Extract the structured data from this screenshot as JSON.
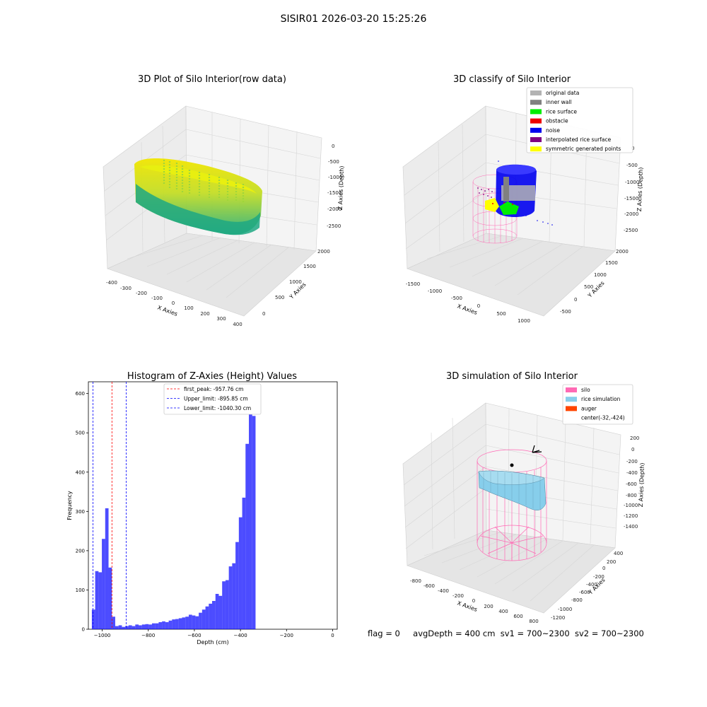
{
  "suptitle": "SISIR01 2026-03-20 15:25:26",
  "panels": {
    "raw": {
      "title": "3D Plot of Silo Interior(row data)",
      "xlabel": "X Axies",
      "ylabel": "Y Axies",
      "zlabel": "Z Axies (Depth)",
      "xticks": [
        "-400",
        "-300",
        "-200",
        "-100",
        "0",
        "100",
        "200",
        "300",
        "400"
      ],
      "yticks": [
        "0",
        "500",
        "1000",
        "1500",
        "2000"
      ],
      "zticks": [
        "0",
        "-500",
        "-1000",
        "-1500",
        "-2000",
        "-2500"
      ]
    },
    "classify": {
      "title": "3D classify of Silo Interior",
      "xlabel": "X Axies",
      "ylabel": "Y Axies",
      "zlabel": "Z Axies (Depth)",
      "xticks": [
        "-1500",
        "-1000",
        "-500",
        "0",
        "500",
        "1000"
      ],
      "yticks": [
        "-500",
        "0",
        "500",
        "1000",
        "1500",
        "2000"
      ],
      "zticks": [
        "0",
        "-500",
        "-1000",
        "-1500",
        "-2000",
        "-2500"
      ],
      "legend": [
        {
          "label": "original data",
          "color": "#b3b3b3"
        },
        {
          "label": "inner wall",
          "color": "#808080"
        },
        {
          "label": "rice surface",
          "color": "#00ee00"
        },
        {
          "label": "obstacle",
          "color": "#ee0000"
        },
        {
          "label": "noise",
          "color": "#0000ee"
        },
        {
          "label": "interpolated rice surface",
          "color": "#800080"
        },
        {
          "label": "symmetric generated points",
          "color": "#ffff00"
        }
      ]
    },
    "simulation": {
      "title": "3D simulation of Silo Interior",
      "xlabel": "X Axies",
      "ylabel": "Y Axies",
      "zlabel": "Z Axies (Depth)",
      "xticks": [
        "-800",
        "-600",
        "-400",
        "-200",
        "0",
        "200",
        "400",
        "600",
        "800"
      ],
      "yticks": [
        "400",
        "200",
        "0",
        "-200",
        "-400",
        "-600",
        "-800",
        "-1000",
        "-1200"
      ],
      "zticks": [
        "200",
        "0",
        "-200",
        "-400",
        "-600",
        "-800",
        "-1000",
        "-1200",
        "-1400"
      ],
      "legend": [
        {
          "label": "silo",
          "color": "#ff69b4"
        },
        {
          "label": "rice simulation",
          "color": "#87ceeb"
        },
        {
          "label": "auger",
          "color": "#ff4500"
        },
        {
          "label": "center(-32,-424)",
          "color": ""
        }
      ]
    }
  },
  "footer": {
    "flag": "flag = 0",
    "avg": "avgDepth = 400 cm",
    "sv1": "sv1 = 700~2300",
    "sv2": "sv2 = 700~2300"
  },
  "chart_data": {
    "type": "bar",
    "title": "Histogram of Z-Axies (Height) Values",
    "xlabel": "Depth (cm)",
    "ylabel": "Frequency",
    "xlim": [
      -1060,
      20
    ],
    "ylim": [
      0,
      630
    ],
    "bar_color": "#0000ff",
    "bin_start": -1045,
    "bin_width": 14.5,
    "values": [
      50,
      148,
      145,
      230,
      308,
      157,
      32,
      8,
      10,
      6,
      8,
      10,
      8,
      12,
      10,
      12,
      13,
      12,
      15,
      15,
      18,
      20,
      18,
      22,
      25,
      26,
      28,
      30,
      32,
      37,
      35,
      33,
      42,
      50,
      58,
      65,
      72,
      90,
      85,
      122,
      125,
      160,
      168,
      222,
      285,
      335,
      472,
      598,
      543
    ],
    "vlines": [
      {
        "label": "first_peak: -957.76 cm",
        "x": -957.76,
        "color": "#ff0000"
      },
      {
        "label": "Upper_limit: -895.85 cm",
        "x": -895.85,
        "color": "#0000ff"
      },
      {
        "label": "Lower_limit: -1040.30 cm",
        "x": -1040.3,
        "color": "#0000ff"
      }
    ],
    "xticks": [
      -1000,
      -800,
      -600,
      -400,
      -200,
      0
    ],
    "yticks": [
      0,
      100,
      200,
      300,
      400,
      500,
      600
    ],
    "legend_position": "upper center",
    "grid": false
  }
}
